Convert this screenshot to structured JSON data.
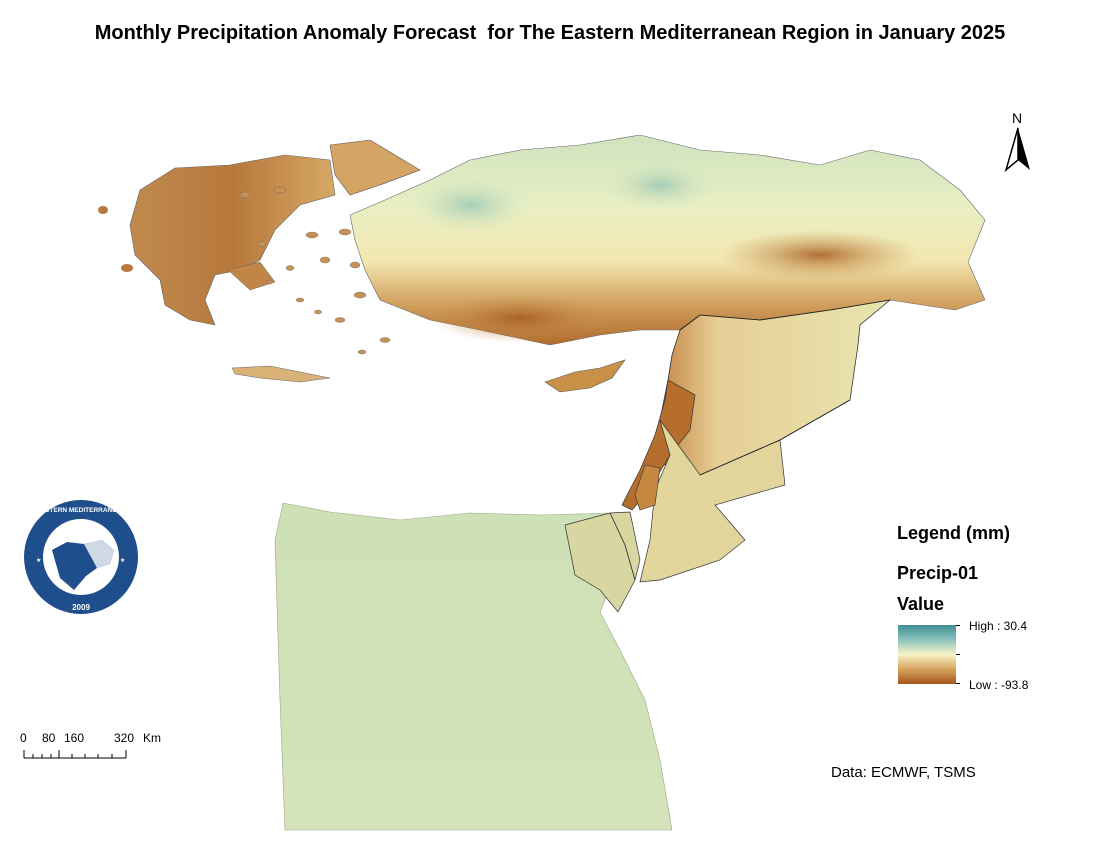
{
  "map": {
    "title": "Monthly Precipitation Anomaly Forecast  for The Eastern Mediterranean Region in January 2025",
    "north_label": "N",
    "legend": {
      "title": "Legend (mm)",
      "layer": "Precip-01",
      "field": "Value",
      "high_label": "High : 30.4",
      "low_label": "Low : -93.8",
      "high_value": 30.4,
      "low_value": -93.8,
      "colors": {
        "high": "#3f8f94",
        "mid": "#f7f3c6",
        "low": "#a5561c"
      }
    },
    "scale_bar": {
      "labels": [
        "0",
        "80",
        "160",
        "320"
      ],
      "unit": "Km"
    },
    "logo_text": {
      "ring": "EASTERN MEDITERRANEAN CLIMATE CENTRE",
      "year": "2009"
    },
    "source": "Data: ECMWF, TSMS"
  }
}
